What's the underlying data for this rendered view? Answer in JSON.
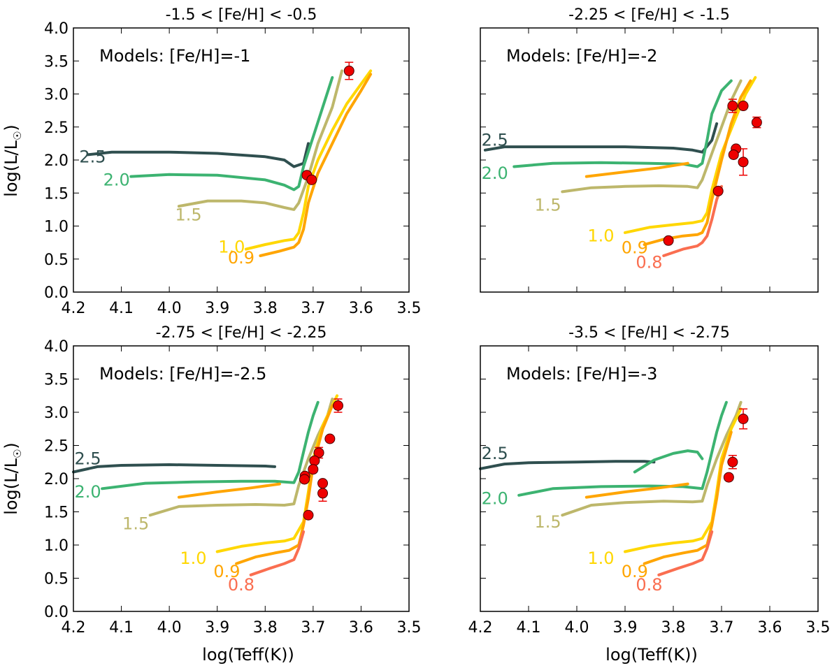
{
  "figure": {
    "xlabel": "log(Teff(K))",
    "ylabel": "log(L/L",
    "ylabel_sub": "☉",
    "ylabel_close": ")"
  },
  "colors": {
    "m2.5": "#2f4f4f",
    "m2.0": "#3cb371",
    "m1.5": "#bdb76b",
    "m1.0": "#ffd700",
    "m0.9": "#ffa500",
    "m0.8": "#fa6e50",
    "point": "#ee0000",
    "errorbar": "#ee0000"
  },
  "chart_data": [
    {
      "type": "line",
      "title": "-1.5 < [Fe/H] < -0.5",
      "annotation": "Models: [Fe/H]=-1",
      "xlabel": "",
      "ylabel": "log(L/L☉)",
      "xlim": [
        4.2,
        3.5
      ],
      "ylim": [
        0.0,
        4.0
      ],
      "xticks": [
        "4.2",
        "4.1",
        "4.0",
        "3.9",
        "3.8",
        "3.7",
        "3.6",
        "3.5"
      ],
      "yticks": [
        "0.0",
        "0.5",
        "1.0",
        "1.5",
        "2.0",
        "2.5",
        "3.0",
        "3.5",
        "4.0"
      ],
      "series": [
        {
          "name": "2.5",
          "color_key": "m2.5",
          "label_at": [
            4.16,
            2.05
          ],
          "x": [
            4.17,
            4.12,
            4.0,
            3.9,
            3.8,
            3.76,
            3.74,
            3.72,
            3.71
          ],
          "y": [
            2.08,
            2.12,
            2.12,
            2.1,
            2.05,
            2.0,
            1.9,
            1.95,
            2.25
          ]
        },
        {
          "name": "2.0",
          "color_key": "m2.0",
          "label_at": [
            4.11,
            1.7
          ],
          "x": [
            4.08,
            4.0,
            3.9,
            3.8,
            3.76,
            3.74,
            3.73,
            3.72,
            3.7,
            3.68,
            3.66
          ],
          "y": [
            1.75,
            1.78,
            1.77,
            1.7,
            1.62,
            1.55,
            1.6,
            1.9,
            2.35,
            2.8,
            3.25
          ]
        },
        {
          "name": "1.5",
          "color_key": "m1.5",
          "label_at": [
            3.96,
            1.17
          ],
          "x": [
            3.98,
            3.92,
            3.85,
            3.8,
            3.76,
            3.74,
            3.73,
            3.71,
            3.69,
            3.66,
            3.64
          ],
          "y": [
            1.3,
            1.38,
            1.38,
            1.35,
            1.28,
            1.25,
            1.35,
            1.75,
            2.25,
            2.8,
            3.35
          ]
        },
        {
          "name": "1.0",
          "color_key": "m1.0",
          "label_at": [
            3.87,
            0.68
          ],
          "x": [
            3.84,
            3.8,
            3.76,
            3.74,
            3.73,
            3.72,
            3.71,
            3.69,
            3.66,
            3.63,
            3.6,
            3.58
          ],
          "y": [
            0.65,
            0.72,
            0.78,
            0.8,
            0.9,
            1.2,
            1.6,
            2.0,
            2.45,
            2.85,
            3.15,
            3.35
          ]
        },
        {
          "name": "0.9",
          "color_key": "m0.9",
          "label_at": [
            3.85,
            0.52
          ],
          "x": [
            3.81,
            3.77,
            3.74,
            3.73,
            3.72,
            3.71,
            3.69,
            3.66,
            3.63,
            3.6,
            3.58
          ],
          "y": [
            0.55,
            0.62,
            0.68,
            0.75,
            0.95,
            1.35,
            1.8,
            2.25,
            2.7,
            3.05,
            3.3
          ]
        }
      ],
      "points": [
        {
          "x": 3.625,
          "y": 3.35,
          "err": 0.13
        },
        {
          "x": 3.713,
          "y": 1.77,
          "err": 0.0
        },
        {
          "x": 3.703,
          "y": 1.7,
          "err": 0.0
        }
      ]
    },
    {
      "type": "line",
      "title": "-2.25 < [Fe/H] < -1.5",
      "annotation": "Models: [Fe/H]=-2",
      "xlabel": "",
      "ylabel": "",
      "xlim": [
        4.2,
        3.5
      ],
      "ylim": [
        0.0,
        4.0
      ],
      "xticks": [],
      "yticks": [],
      "series": [
        {
          "name": "2.5",
          "color_key": "m2.5",
          "label_at": [
            4.17,
            2.3
          ],
          "x": [
            4.19,
            4.15,
            4.1,
            4.0,
            3.9,
            3.8,
            3.76,
            3.74,
            3.72,
            3.71
          ],
          "y": [
            2.15,
            2.2,
            2.2,
            2.2,
            2.2,
            2.18,
            2.15,
            2.12,
            2.3,
            2.55
          ]
        },
        {
          "name": "2.0",
          "color_key": "m2.0",
          "label_at": [
            4.17,
            1.8
          ],
          "x": [
            4.13,
            4.05,
            3.95,
            3.85,
            3.78,
            3.75,
            3.74,
            3.73,
            3.72,
            3.7,
            3.68
          ],
          "y": [
            1.9,
            1.95,
            1.96,
            1.95,
            1.94,
            1.9,
            1.95,
            2.3,
            2.7,
            3.05,
            3.2
          ]
        },
        {
          "name": "1.5",
          "color_key": "m1.5",
          "label_at": [
            4.06,
            1.32
          ],
          "x": [
            4.03,
            3.97,
            3.9,
            3.83,
            3.77,
            3.75,
            3.74,
            3.72,
            3.7,
            3.68,
            3.66
          ],
          "y": [
            1.52,
            1.58,
            1.6,
            1.61,
            1.6,
            1.58,
            1.7,
            2.1,
            2.5,
            2.9,
            3.2
          ]
        },
        {
          "name": "1.0",
          "color_key": "m1.0",
          "label_at": [
            3.95,
            0.85
          ],
          "x": [
            3.9,
            3.85,
            3.8,
            3.76,
            3.74,
            3.73,
            3.72,
            3.7,
            3.67,
            3.65,
            3.63
          ],
          "y": [
            0.9,
            0.98,
            1.02,
            1.05,
            1.08,
            1.2,
            1.55,
            2.1,
            2.65,
            3.0,
            3.25
          ]
        },
        {
          "name": "0.9",
          "color_key": "m0.9",
          "label_at": [
            3.88,
            0.67
          ],
          "x": [
            3.86,
            3.82,
            3.78,
            3.75,
            3.74,
            3.73,
            3.72,
            3.7,
            3.68,
            3.66,
            3.64
          ],
          "y": [
            0.72,
            0.8,
            0.85,
            0.87,
            0.9,
            1.05,
            1.4,
            2.0,
            2.55,
            2.95,
            3.2
          ]
        },
        {
          "name": "0.8",
          "color_key": "m0.8",
          "label_at": [
            3.85,
            0.45
          ],
          "x": [
            3.82,
            3.78,
            3.75,
            3.74,
            3.73,
            3.72,
            3.71,
            3.7
          ],
          "y": [
            0.55,
            0.65,
            0.7,
            0.75,
            0.85,
            1.1,
            1.4,
            1.6
          ]
        },
        {
          "name": "",
          "color_key": "m0.9",
          "label_at": null,
          "x": [
            3.98,
            3.9,
            3.83,
            3.77
          ],
          "y": [
            1.75,
            1.82,
            1.88,
            1.95
          ]
        }
      ],
      "points": [
        {
          "x": 3.677,
          "y": 2.82,
          "err": 0.1
        },
        {
          "x": 3.655,
          "y": 2.82,
          "err": 0.0
        },
        {
          "x": 3.627,
          "y": 2.57,
          "err": 0.08
        },
        {
          "x": 3.67,
          "y": 2.17,
          "err": 0.0
        },
        {
          "x": 3.675,
          "y": 2.08,
          "err": 0.0
        },
        {
          "x": 3.655,
          "y": 1.97,
          "err": 0.2
        },
        {
          "x": 3.707,
          "y": 1.53,
          "err": 0.0
        },
        {
          "x": 3.81,
          "y": 0.78,
          "err": 0.0
        }
      ]
    },
    {
      "type": "line",
      "title": "-2.75 < [Fe/H] < -2.25",
      "annotation": "Models: [Fe/H]=-2.5",
      "xlabel": "log(Teff(K))",
      "ylabel": "log(L/L☉)",
      "xlim": [
        4.2,
        3.5
      ],
      "ylim": [
        0.0,
        4.0
      ],
      "xticks": [
        "4.2",
        "4.1",
        "4.0",
        "3.9",
        "3.8",
        "3.7",
        "3.6",
        "3.5"
      ],
      "yticks": [
        "0.0",
        "0.5",
        "1.0",
        "1.5",
        "2.0",
        "2.5",
        "3.0",
        "3.5",
        "4.0"
      ],
      "series": [
        {
          "name": "2.5",
          "color_key": "m2.5",
          "label_at": [
            4.17,
            2.3
          ],
          "x": [
            4.2,
            4.15,
            4.1,
            4.0,
            3.9,
            3.8,
            3.78
          ],
          "y": [
            2.1,
            2.18,
            2.2,
            2.21,
            2.2,
            2.19,
            2.18
          ]
        },
        {
          "name": "2.0",
          "color_key": "m2.0",
          "label_at": [
            4.17,
            1.8
          ],
          "x": [
            4.14,
            4.05,
            3.95,
            3.85,
            3.78,
            3.74,
            3.73,
            3.72,
            3.71,
            3.7,
            3.69
          ],
          "y": [
            1.85,
            1.93,
            1.95,
            1.96,
            1.96,
            1.94,
            2.1,
            2.4,
            2.7,
            2.95,
            3.15
          ]
        },
        {
          "name": "1.5",
          "color_key": "m1.5",
          "label_at": [
            4.07,
            1.32
          ],
          "x": [
            4.04,
            3.98,
            3.9,
            3.82,
            3.76,
            3.74,
            3.73,
            3.71,
            3.69,
            3.67,
            3.66
          ],
          "y": [
            1.45,
            1.58,
            1.6,
            1.61,
            1.6,
            1.62,
            1.9,
            2.3,
            2.65,
            2.95,
            3.2
          ]
        },
        {
          "name": "1.0",
          "color_key": "m1.0",
          "label_at": [
            3.95,
            0.8
          ],
          "x": [
            3.9,
            3.85,
            3.8,
            3.76,
            3.74,
            3.72,
            3.71,
            3.7,
            3.68,
            3.66,
            3.65
          ],
          "y": [
            0.9,
            0.98,
            1.03,
            1.06,
            1.1,
            1.35,
            1.8,
            2.3,
            2.8,
            3.1,
            3.25
          ]
        },
        {
          "name": "0.9",
          "color_key": "m0.9",
          "label_at": [
            3.88,
            0.6
          ],
          "x": [
            3.86,
            3.82,
            3.78,
            3.75,
            3.73,
            3.72,
            3.71,
            3.7,
            3.68,
            3.66
          ],
          "y": [
            0.72,
            0.82,
            0.88,
            0.92,
            1.0,
            1.3,
            1.7,
            2.2,
            2.75,
            3.1
          ]
        },
        {
          "name": "0.8",
          "color_key": "m0.8",
          "label_at": [
            3.85,
            0.4
          ],
          "x": [
            3.83,
            3.79,
            3.76,
            3.74,
            3.73,
            3.72
          ],
          "y": [
            0.55,
            0.65,
            0.72,
            0.78,
            0.95,
            1.2
          ]
        },
        {
          "name": "",
          "color_key": "m0.9",
          "label_at": null,
          "x": [
            3.98,
            3.9,
            3.83,
            3.77
          ],
          "y": [
            1.72,
            1.8,
            1.86,
            1.92
          ]
        }
      ],
      "points": [
        {
          "x": 3.648,
          "y": 3.1,
          "err": 0.1
        },
        {
          "x": 3.665,
          "y": 2.6,
          "err": 0.0
        },
        {
          "x": 3.688,
          "y": 2.39,
          "err": 0.08
        },
        {
          "x": 3.697,
          "y": 2.27,
          "err": 0.0
        },
        {
          "x": 3.7,
          "y": 2.14,
          "err": 0.0
        },
        {
          "x": 3.717,
          "y": 2.04,
          "err": 0.0
        },
        {
          "x": 3.718,
          "y": 1.99,
          "err": 0.0
        },
        {
          "x": 3.68,
          "y": 1.93,
          "err": 0.0
        },
        {
          "x": 3.68,
          "y": 1.78,
          "err": 0.12
        },
        {
          "x": 3.71,
          "y": 1.45,
          "err": 0.0
        }
      ]
    },
    {
      "type": "line",
      "title": "-3.5 < [Fe/H] < -2.75",
      "annotation": "Models: [Fe/H]=-3",
      "xlabel": "log(Teff(K))",
      "ylabel": "",
      "xlim": [
        4.2,
        3.5
      ],
      "ylim": [
        0.0,
        4.0
      ],
      "xticks": [
        "4.2",
        "4.1",
        "4.0",
        "3.9",
        "3.8",
        "3.7",
        "3.6",
        "3.5"
      ],
      "yticks": [],
      "series": [
        {
          "name": "2.5",
          "color_key": "m2.5",
          "label_at": [
            4.17,
            2.38
          ],
          "x": [
            4.2,
            4.15,
            4.1,
            4.0,
            3.92,
            3.86,
            3.84
          ],
          "y": [
            2.15,
            2.22,
            2.24,
            2.25,
            2.26,
            2.26,
            2.25
          ]
        },
        {
          "name": "2.0",
          "color_key": "m2.0",
          "label_at": [
            4.17,
            1.7
          ],
          "x": [
            4.12,
            4.05,
            3.95,
            3.85,
            3.78,
            3.74,
            3.73,
            3.72,
            3.71,
            3.7,
            3.69
          ],
          "y": [
            1.75,
            1.85,
            1.88,
            1.89,
            1.88,
            1.85,
            2.1,
            2.4,
            2.7,
            2.95,
            3.15
          ]
        },
        {
          "name": "1.5",
          "color_key": "m1.5",
          "label_at": [
            4.06,
            1.35
          ],
          "x": [
            4.03,
            3.97,
            3.9,
            3.82,
            3.76,
            3.74,
            3.73,
            3.71,
            3.69,
            3.67,
            3.66
          ],
          "y": [
            1.45,
            1.6,
            1.64,
            1.66,
            1.65,
            1.66,
            1.9,
            2.3,
            2.65,
            2.95,
            3.15
          ]
        },
        {
          "name": "1.0",
          "color_key": "m1.0",
          "label_at": [
            3.95,
            0.8
          ],
          "x": [
            3.9,
            3.85,
            3.8,
            3.76,
            3.74,
            3.72,
            3.71,
            3.7,
            3.68,
            3.66
          ],
          "y": [
            0.9,
            0.98,
            1.03,
            1.06,
            1.1,
            1.35,
            1.8,
            2.3,
            2.75,
            3.05
          ]
        },
        {
          "name": "0.9",
          "color_key": "m0.9",
          "label_at": [
            3.88,
            0.6
          ],
          "x": [
            3.86,
            3.82,
            3.78,
            3.75,
            3.73,
            3.72,
            3.71,
            3.7,
            3.68
          ],
          "y": [
            0.72,
            0.82,
            0.88,
            0.92,
            1.0,
            1.3,
            1.7,
            2.2,
            2.7
          ]
        },
        {
          "name": "0.8",
          "color_key": "m0.8",
          "label_at": [
            3.85,
            0.4
          ],
          "x": [
            3.83,
            3.79,
            3.76,
            3.74,
            3.73,
            3.72
          ],
          "y": [
            0.55,
            0.65,
            0.72,
            0.78,
            0.95,
            1.2
          ]
        },
        {
          "name": "",
          "color_key": "m0.9",
          "label_at": null,
          "x": [
            3.98,
            3.9,
            3.83,
            3.77
          ],
          "y": [
            1.72,
            1.8,
            1.86,
            1.92
          ]
        },
        {
          "name": "",
          "color_key": "m2.0",
          "label_at": null,
          "x": [
            3.88,
            3.84,
            3.8,
            3.77,
            3.75,
            3.74
          ],
          "y": [
            2.1,
            2.28,
            2.38,
            2.42,
            2.4,
            2.3
          ]
        }
      ],
      "points": [
        {
          "x": 3.655,
          "y": 2.9,
          "err": 0.15
        },
        {
          "x": 3.677,
          "y": 2.25,
          "err": 0.1
        },
        {
          "x": 3.685,
          "y": 2.02,
          "err": 0.0
        }
      ]
    }
  ]
}
